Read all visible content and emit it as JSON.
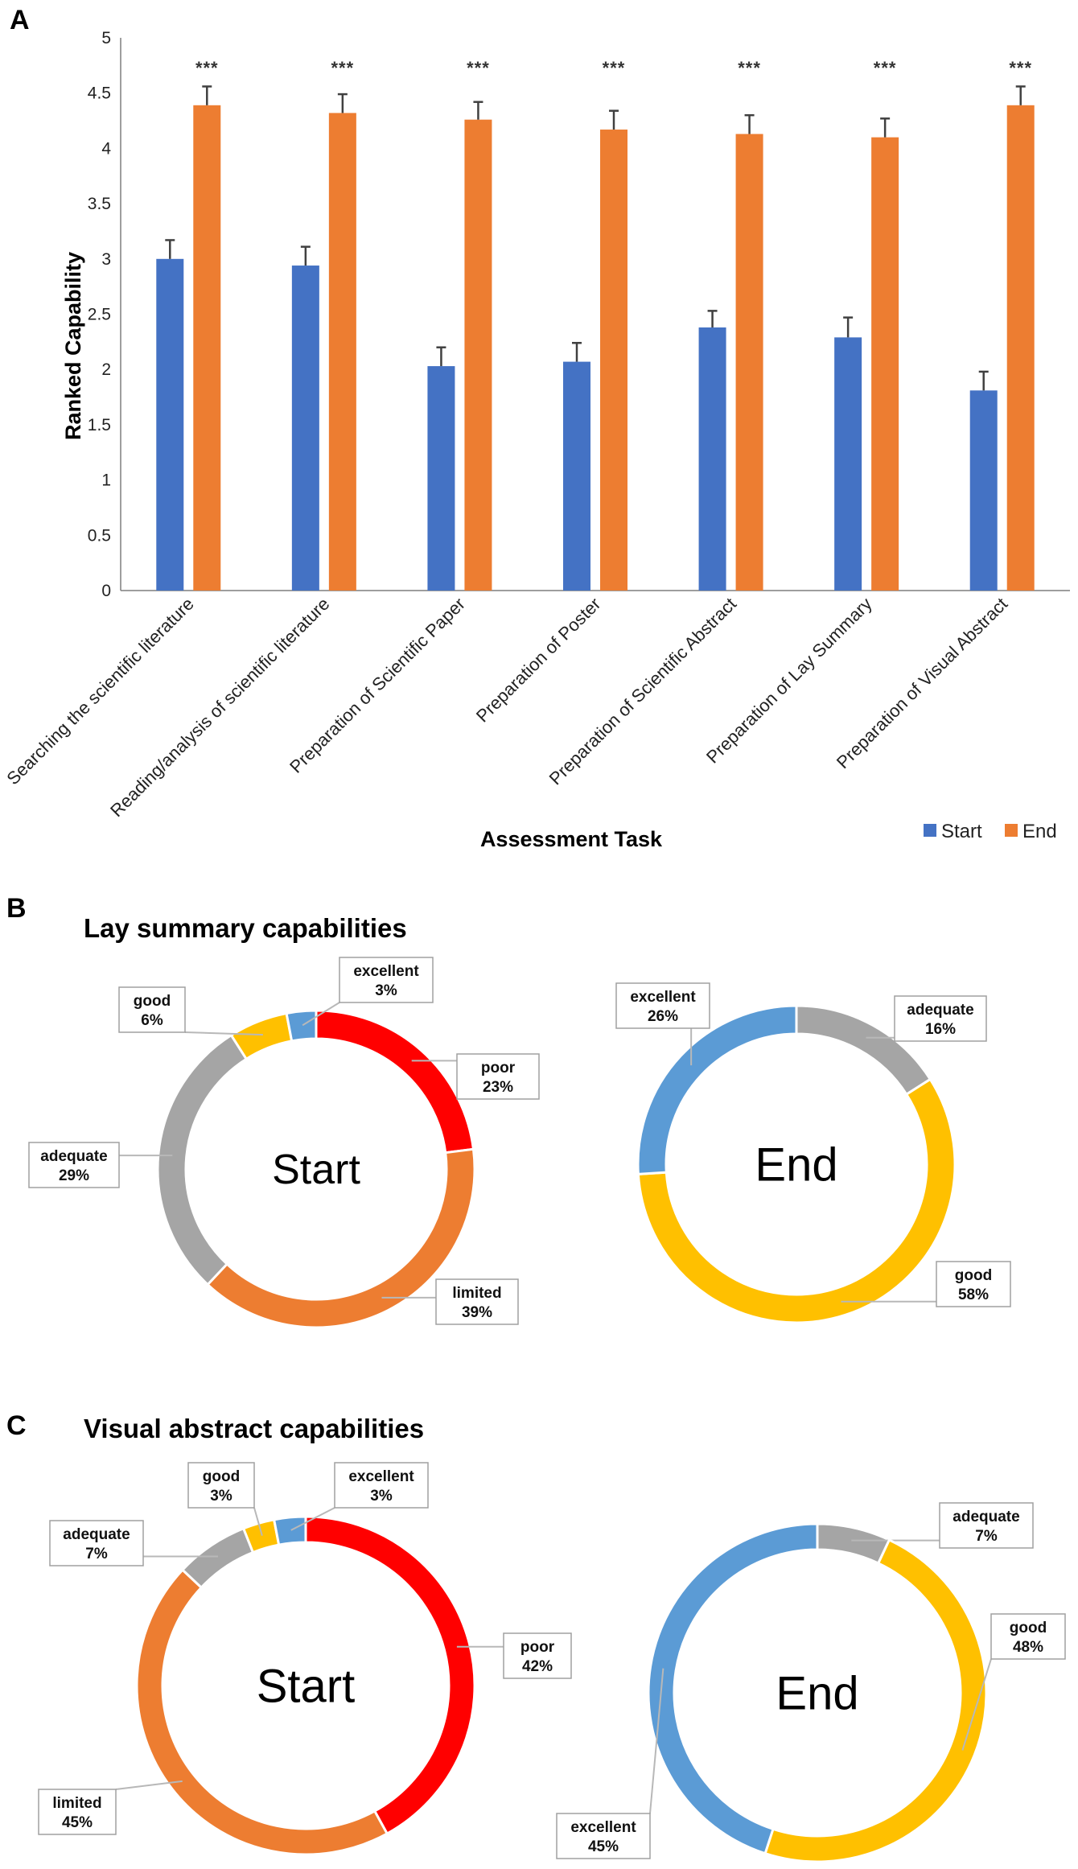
{
  "colors": {
    "start": "#4472C4",
    "end": "#ED7D31",
    "poor": "#FF0000",
    "limited": "#ED7D31",
    "adequate": "#A5A5A5",
    "good": "#FFC000",
    "excellent": "#5B9BD5",
    "error_bar": "#404040"
  },
  "panels": {
    "a": "A",
    "b": "B",
    "c": "C"
  },
  "chart_data": [
    {
      "type": "bar",
      "panel": "A",
      "title": "",
      "xlabel": "Assessment Task",
      "ylabel": "Ranked Capability",
      "ylim": [
        0,
        5
      ],
      "yticks": [
        "0",
        "0.5",
        "1",
        "1.5",
        "2",
        "2.5",
        "3",
        "3.5",
        "4",
        "4.5",
        "5"
      ],
      "grid": false,
      "legend_position": "bottom-right",
      "categories": [
        "Searching the scientific literature",
        "Reading/analysis of scientific literature",
        "Preparation of Scientific Paper",
        "Preparation of Poster",
        "Preparation of Scientific Abstract",
        "Preparation of Lay Summary",
        "Preparation of Visual Abstract"
      ],
      "series": [
        {
          "name": "Start",
          "values": [
            3.0,
            2.94,
            2.03,
            2.07,
            2.38,
            2.29,
            1.81
          ],
          "errors": [
            0.17,
            0.17,
            0.17,
            0.17,
            0.15,
            0.18,
            0.17
          ]
        },
        {
          "name": "End",
          "values": [
            4.39,
            4.32,
            4.26,
            4.17,
            4.13,
            4.1,
            4.39
          ],
          "errors": [
            0.17,
            0.17,
            0.16,
            0.17,
            0.17,
            0.17,
            0.17
          ]
        }
      ],
      "annotations": [
        "***",
        "***",
        "***",
        "***",
        "***",
        "***",
        "***"
      ]
    },
    {
      "type": "pie",
      "panel": "B",
      "title": "Lay summary capabilities",
      "charts": [
        {
          "center_label": "Start",
          "slices": [
            {
              "label": "poor",
              "value": 23,
              "color_key": "poor",
              "text": "23%"
            },
            {
              "label": "limited",
              "value": 39,
              "color_key": "limited",
              "text": "39%"
            },
            {
              "label": "adequate",
              "value": 29,
              "color_key": "adequate",
              "text": "29%"
            },
            {
              "label": "good",
              "value": 6,
              "color_key": "good",
              "text": "6%"
            },
            {
              "label": "excellent",
              "value": 3,
              "color_key": "excellent",
              "text": "3%"
            }
          ]
        },
        {
          "center_label": "End",
          "slices": [
            {
              "label": "adequate",
              "value": 16,
              "color_key": "adequate",
              "text": "16%"
            },
            {
              "label": "good",
              "value": 58,
              "color_key": "good",
              "text": "58%"
            },
            {
              "label": "excellent",
              "value": 26,
              "color_key": "excellent",
              "text": "26%"
            }
          ]
        }
      ]
    },
    {
      "type": "pie",
      "panel": "C",
      "title": "Visual abstract capabilities",
      "charts": [
        {
          "center_label": "Start",
          "slices": [
            {
              "label": "poor",
              "value": 42,
              "color_key": "poor",
              "text": "42%"
            },
            {
              "label": "limited",
              "value": 45,
              "color_key": "limited",
              "text": "45%"
            },
            {
              "label": "adequate",
              "value": 7,
              "color_key": "adequate",
              "text": "7%"
            },
            {
              "label": "good",
              "value": 3,
              "color_key": "good",
              "text": "3%"
            },
            {
              "label": "excellent",
              "value": 3,
              "color_key": "excellent",
              "text": "3%"
            }
          ]
        },
        {
          "center_label": "End",
          "slices": [
            {
              "label": "adequate",
              "value": 7,
              "color_key": "adequate",
              "text": "7%"
            },
            {
              "label": "good",
              "value": 48,
              "color_key": "good",
              "text": "48%"
            },
            {
              "label": "excellent",
              "value": 45,
              "color_key": "excellent",
              "text": "45%"
            }
          ]
        }
      ]
    }
  ]
}
